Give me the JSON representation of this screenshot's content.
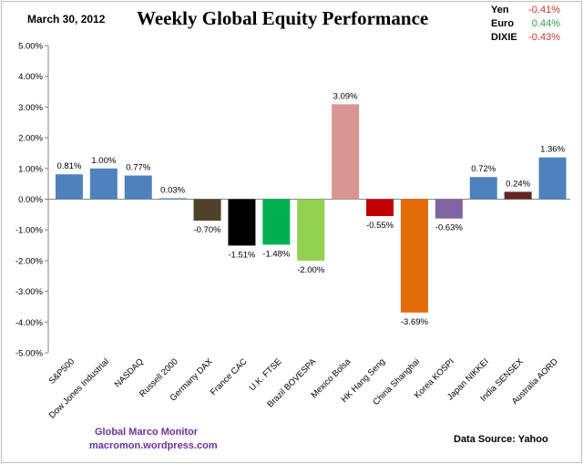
{
  "header": {
    "date": "March 30, 2012"
  },
  "fx": [
    {
      "label": "Yen",
      "value": "-0.41%",
      "color": "#c0392b"
    },
    {
      "label": "Euro",
      "value": "0.44%",
      "color": "#2ea04f"
    },
    {
      "label": "DIXIE",
      "value": "-0.43%",
      "color": "#c0392b"
    }
  ],
  "footer": {
    "brand_line1": "Global Marco Monitor",
    "brand_line2": "macromon.wordpress.com",
    "source": "Data Source:   Yahoo"
  },
  "chart_data": {
    "type": "bar",
    "title": "Weekly Global Equity Performance",
    "xlabel": "",
    "ylabel": "",
    "ylim": [
      -5,
      5
    ],
    "yticks": [
      5,
      4,
      3,
      2,
      1,
      0,
      -1,
      -2,
      -3,
      -4,
      -5
    ],
    "ytick_labels": [
      "5.00%",
      "4.00%",
      "3.00%",
      "2.00%",
      "1.00%",
      "0.00%",
      "-1.00%",
      "-2.00%",
      "-3.00%",
      "-4.00%",
      "-5.00%"
    ],
    "grid": false,
    "categories": [
      "S&P500",
      "Dow Jones Industrial",
      "NASDAQ",
      "Russell 2000",
      "Germany DAX",
      "France CAC",
      "U.K. FTSE",
      "Brazil BOVESPA",
      "Mexico Bolsa",
      "HK Hang Seng",
      "China Shanghai",
      "Korea KOSPI",
      "Japan NIKKEI",
      "India SENSEX",
      "Australia AORD"
    ],
    "values": [
      0.81,
      1.0,
      0.77,
      0.03,
      -0.7,
      -1.51,
      -1.48,
      -2.0,
      3.09,
      -0.55,
      -3.69,
      -0.63,
      0.72,
      0.24,
      1.36
    ],
    "data_labels": [
      "0.81%",
      "1.00%",
      "0.77%",
      "0.03%",
      "-0.70%",
      "-1.51%",
      "-1.48%",
      "-2.00%",
      "3.09%",
      "-0.55%",
      "-3.69%",
      "-0.63%",
      "0.72%",
      "0.24%",
      "1.36%"
    ],
    "colors": [
      "#4f81bd",
      "#4f81bd",
      "#4f81bd",
      "#4f81bd",
      "#4f4228",
      "#000000",
      "#00b050",
      "#92d050",
      "#d99594",
      "#c00000",
      "#e36c09",
      "#8064a2",
      "#4f81bd",
      "#632523",
      "#4f81bd"
    ]
  }
}
